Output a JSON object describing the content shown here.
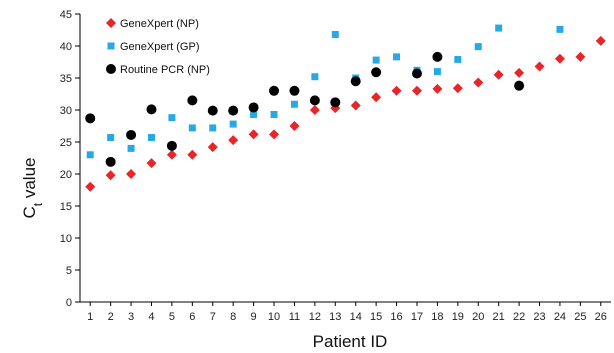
{
  "chart_data": {
    "type": "scatter",
    "title": "",
    "xlabel": "Patient ID",
    "ylabel_main": "C",
    "ylabel_sub": "t",
    "ylabel_rest": " value",
    "xlim": [
      0.5,
      26.5
    ],
    "ylim": [
      0,
      45
    ],
    "yticks": [
      0,
      5,
      10,
      15,
      20,
      25,
      30,
      35,
      40,
      45
    ],
    "xticks": [
      "1",
      "2",
      "3",
      "4",
      "5",
      "6",
      "7",
      "8",
      "9",
      "10",
      "11",
      "12",
      "13",
      "14",
      "15",
      "16",
      "17",
      "18",
      "19",
      "20",
      "21",
      "22",
      "23",
      "24",
      "25",
      "26"
    ],
    "grid": false,
    "legend_position": "top-left",
    "series": [
      {
        "name": "GeneXpert (NP)",
        "marker": "diamond",
        "color": "#e8262a",
        "points": [
          [
            1,
            18
          ],
          [
            2,
            19.8
          ],
          [
            3,
            20
          ],
          [
            4,
            21.7
          ],
          [
            5,
            23
          ],
          [
            6,
            23
          ],
          [
            7,
            24.2
          ],
          [
            8,
            25.3
          ],
          [
            9,
            26.2
          ],
          [
            10,
            26.2
          ],
          [
            11,
            27.5
          ],
          [
            12,
            30
          ],
          [
            13,
            30.3
          ],
          [
            14,
            30.7
          ],
          [
            15,
            32
          ],
          [
            16,
            33
          ],
          [
            17,
            33
          ],
          [
            18,
            33.3
          ],
          [
            19,
            33.4
          ],
          [
            20,
            34.3
          ],
          [
            21,
            35.5
          ],
          [
            22,
            35.8
          ],
          [
            23,
            36.8
          ],
          [
            24,
            38
          ],
          [
            25,
            38.3
          ],
          [
            26,
            40.8
          ]
        ]
      },
      {
        "name": "GeneXpert (GP)",
        "marker": "square",
        "color": "#29a9e1",
        "points": [
          [
            1,
            23
          ],
          [
            2,
            25.7
          ],
          [
            3,
            24
          ],
          [
            4,
            25.7
          ],
          [
            5,
            28.8
          ],
          [
            6,
            27.2
          ],
          [
            7,
            27.2
          ],
          [
            8,
            27.8
          ],
          [
            9,
            29.3
          ],
          [
            10,
            29.3
          ],
          [
            11,
            30.9
          ],
          [
            12,
            35.2
          ],
          [
            13,
            41.8
          ],
          [
            14,
            35
          ],
          [
            15,
            37.8
          ],
          [
            16,
            38.3
          ],
          [
            17,
            36.2
          ],
          [
            18,
            36
          ],
          [
            19,
            37.9
          ],
          [
            20,
            39.9
          ],
          [
            21,
            42.8
          ],
          [
            24,
            42.6
          ]
        ]
      },
      {
        "name": "Routine PCR (NP)",
        "marker": "circle",
        "color": "#000000",
        "points": [
          [
            1,
            28.7
          ],
          [
            2,
            21.9
          ],
          [
            3,
            26.1
          ],
          [
            4,
            30.1
          ],
          [
            5,
            24.4
          ],
          [
            6,
            31.5
          ],
          [
            7,
            29.9
          ],
          [
            8,
            29.9
          ],
          [
            9,
            30.4
          ],
          [
            10,
            33
          ],
          [
            11,
            33
          ],
          [
            12,
            31.5
          ],
          [
            13,
            31.2
          ],
          [
            14,
            34.5
          ],
          [
            15,
            35.9
          ],
          [
            17,
            35.7
          ],
          [
            18,
            38.3
          ],
          [
            22,
            33.8
          ]
        ]
      }
    ]
  }
}
